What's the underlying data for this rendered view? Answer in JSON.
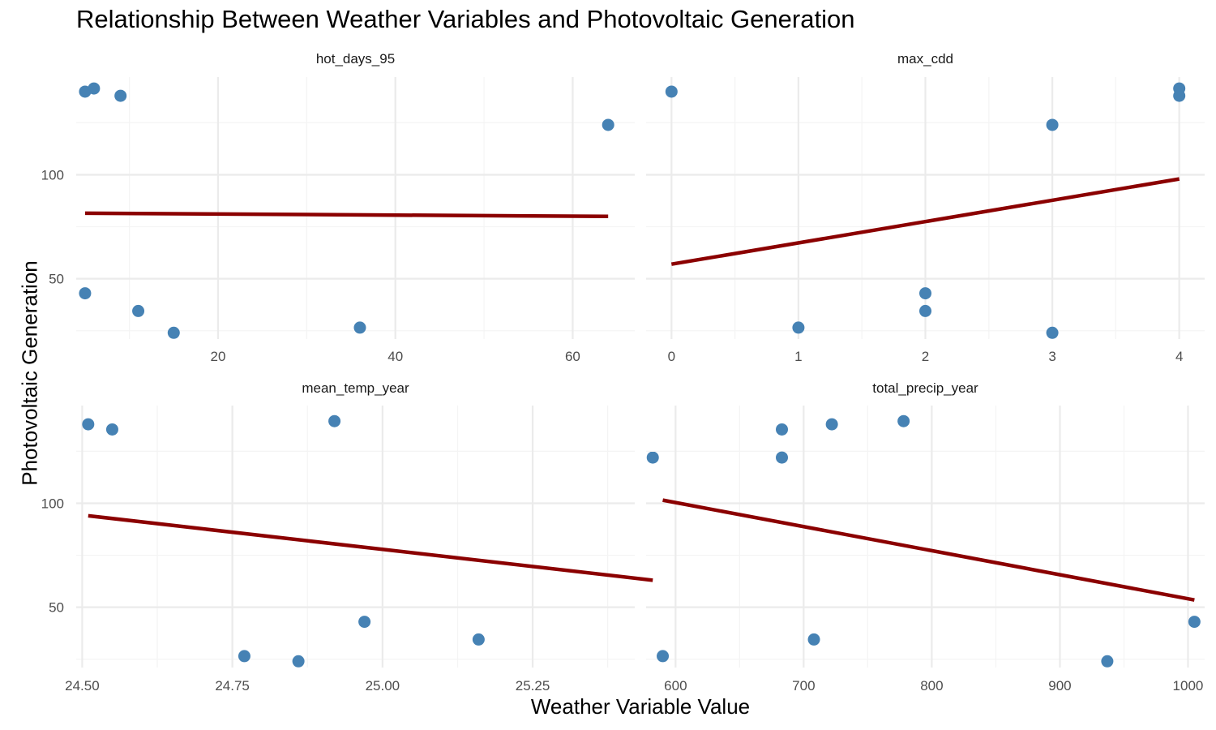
{
  "title": "Relationship Between Weather Variables and Photovoltaic Generation",
  "xlabel": "Weather Variable Value",
  "ylabel": "Photovoltaic Generation",
  "colors": {
    "points": "#4682B4",
    "fit_line": "#8B0000",
    "grid_major": "#ebebeb",
    "grid_minor": "#f4f4f4"
  },
  "chart_data": {
    "type": "scatter",
    "facets": 4,
    "layout": "2x2",
    "y_shared": true,
    "ylim": [
      21,
      147
    ],
    "yticks": [
      50,
      100
    ],
    "yminor": [
      25,
      75,
      125
    ],
    "panels": [
      {
        "name": "hot_days_95",
        "xlim": [
          4,
          67
        ],
        "xticks": [
          20,
          40,
          60
        ],
        "xminor": [
          10,
          30,
          50
        ],
        "points": [
          [
            5,
            140
          ],
          [
            6,
            141.5
          ],
          [
            9,
            138
          ],
          [
            5,
            43
          ],
          [
            11,
            34.5
          ],
          [
            15,
            24
          ],
          [
            36,
            26.5
          ],
          [
            64,
            124
          ]
        ],
        "fit": [
          [
            5,
            81.5
          ],
          [
            64,
            80
          ]
        ]
      },
      {
        "name": "max_cdd",
        "xlim": [
          -0.2,
          4.2
        ],
        "xticks": [
          0,
          1,
          2,
          3,
          4
        ],
        "xminor": [
          0.5,
          1.5,
          2.5,
          3.5
        ],
        "points": [
          [
            0,
            140
          ],
          [
            4,
            141.5
          ],
          [
            4,
            138
          ],
          [
            3,
            124
          ],
          [
            2,
            43
          ],
          [
            2,
            34.5
          ],
          [
            1,
            26.5
          ],
          [
            3,
            24
          ]
        ],
        "fit": [
          [
            0,
            57
          ],
          [
            4,
            98
          ]
        ]
      },
      {
        "name": "mean_temp_year",
        "xlim": [
          24.49,
          25.42
        ],
        "xticks": [
          24.5,
          24.75,
          25.0,
          25.25
        ],
        "xminor": [
          24.625,
          24.875,
          25.125,
          25.375
        ],
        "points": [
          [
            24.51,
            138
          ],
          [
            24.55,
            135.5
          ],
          [
            24.92,
            139.5
          ],
          [
            25.45,
            122
          ],
          [
            24.97,
            43
          ],
          [
            25.16,
            34.5
          ],
          [
            24.77,
            26.5
          ],
          [
            24.86,
            24
          ]
        ],
        "fit": [
          [
            24.51,
            94
          ],
          [
            25.45,
            63
          ]
        ]
      },
      {
        "name": "total_precip_year",
        "xlim": [
          577,
          1013
        ],
        "xticks": [
          600,
          700,
          800,
          900,
          1000
        ],
        "xminor": [
          650,
          750,
          850,
          950
        ],
        "points": [
          [
            683,
            135.5
          ],
          [
            722,
            138
          ],
          [
            778,
            139.5
          ],
          [
            683,
            122
          ],
          [
            1005,
            43
          ],
          [
            708,
            34.5
          ],
          [
            590,
            26.5
          ],
          [
            937,
            24
          ]
        ],
        "fit": [
          [
            590,
            101.5
          ],
          [
            1005,
            53.5
          ]
        ]
      }
    ]
  }
}
